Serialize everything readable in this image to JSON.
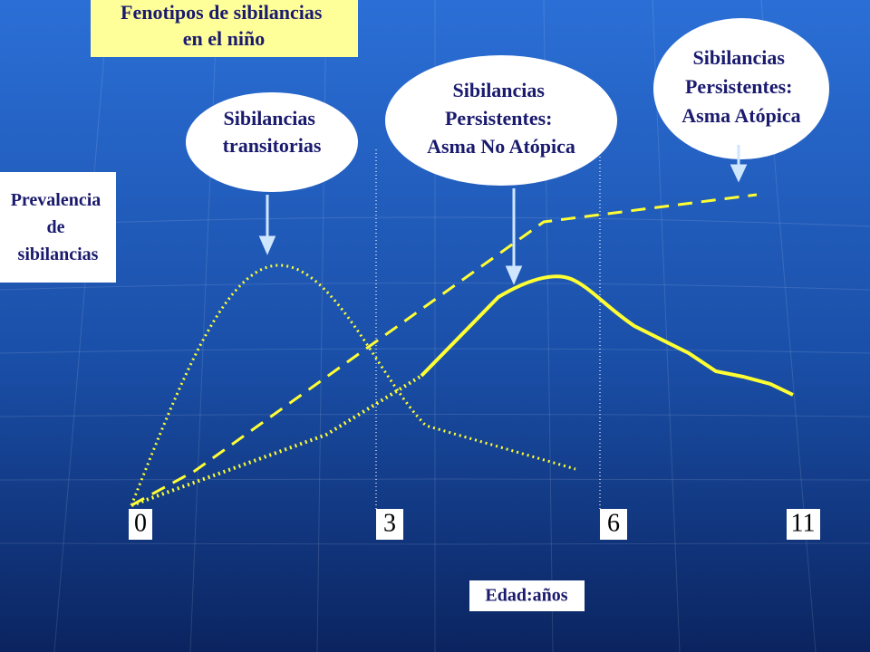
{
  "title": {
    "lines": [
      "Fenotipos de sibilancias",
      "en el niño"
    ]
  },
  "y_label": {
    "lines": [
      "Prevalencia",
      "de",
      "sibilancias"
    ]
  },
  "phenotypes": [
    {
      "lines": [
        "Sibilancias",
        "transitorias"
      ]
    },
    {
      "lines": [
        "Sibilancias",
        "Persistentes:",
        "Asma No Atópica"
      ]
    },
    {
      "lines": [
        "Sibilancias",
        "Persistentes:",
        "Asma Atópica"
      ]
    }
  ],
  "x_ticks": [
    "0",
    "3",
    "6",
    "11"
  ],
  "x_label": "Edad:años"
}
